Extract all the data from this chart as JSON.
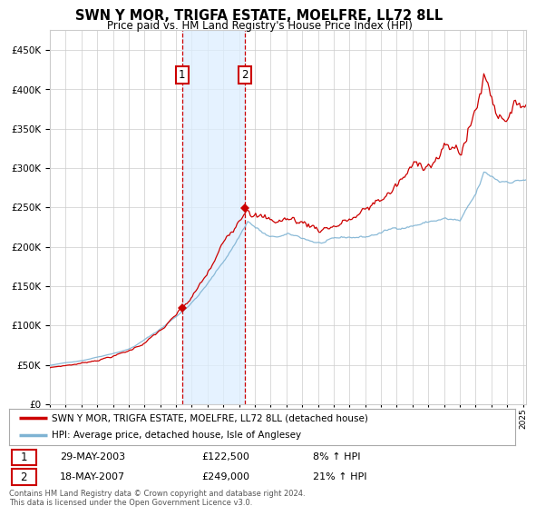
{
  "title": "SWN Y MOR, TRIGFA ESTATE, MOELFRE, LL72 8LL",
  "subtitle": "Price paid vs. HM Land Registry's House Price Index (HPI)",
  "legend_line1": "SWN Y MOR, TRIGFA ESTATE, MOELFRE, LL72 8LL (detached house)",
  "legend_line2": "HPI: Average price, detached house, Isle of Anglesey",
  "transaction1_date": "29-MAY-2003",
  "transaction1_price": "£122,500",
  "transaction1_hpi": "8% ↑ HPI",
  "transaction1_year": 2003.38,
  "transaction1_value": 122500,
  "transaction2_date": "18-MAY-2007",
  "transaction2_price": "£249,000",
  "transaction2_hpi": "21% ↑ HPI",
  "transaction2_year": 2007.38,
  "transaction2_value": 249000,
  "line_color_red": "#cc0000",
  "line_color_blue": "#7fb3d3",
  "shade_color": "#ddeeff",
  "marker_box_color": "#cc0000",
  "grid_color": "#cccccc",
  "background_color": "#ffffff",
  "footer": "Contains HM Land Registry data © Crown copyright and database right 2024.\nThis data is licensed under the Open Government Licence v3.0.",
  "ylim": [
    0,
    475000
  ],
  "xlim_start": 1995,
  "xlim_end": 2025.2
}
